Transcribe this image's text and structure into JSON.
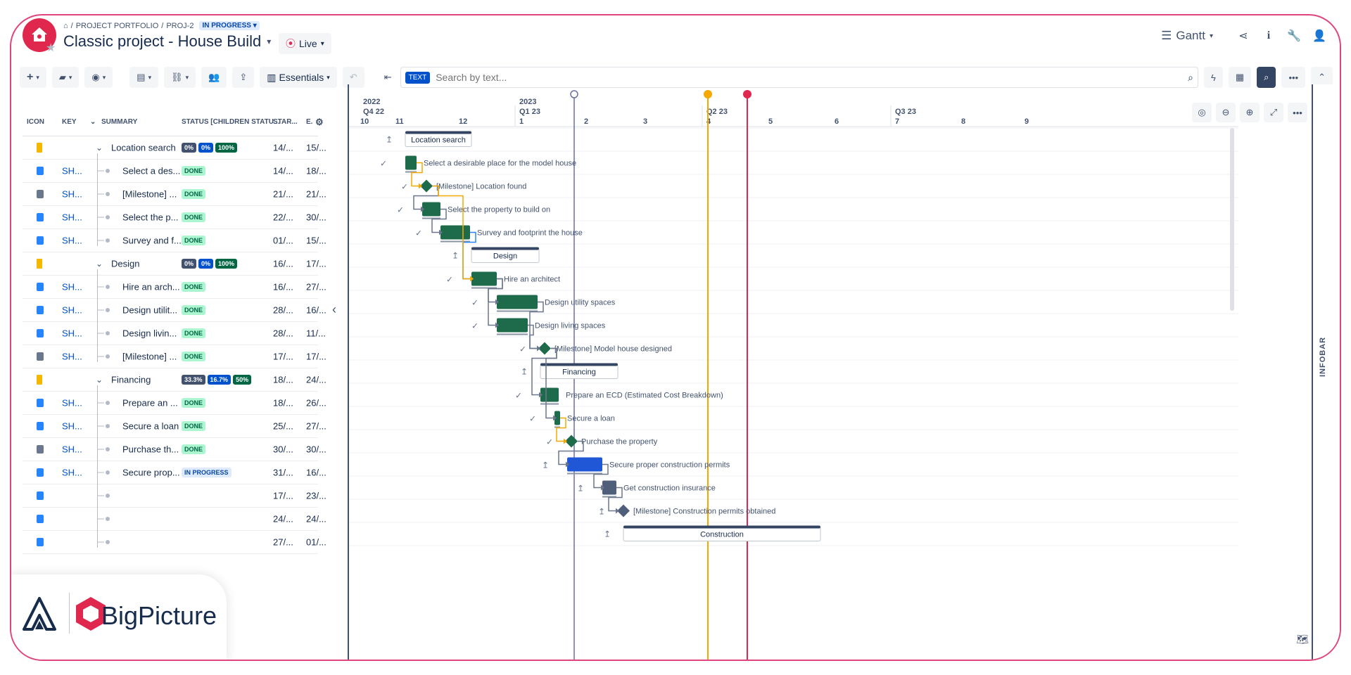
{
  "header": {
    "breadcrumb": [
      "PROJECT PORTFOLIO",
      "PROJ-2"
    ],
    "status_badge": "IN PROGRESS",
    "title": "Classic project - House Build",
    "live_label": "Live",
    "view_label": "Gantt"
  },
  "toolbar": {
    "essentials_label": "Essentials",
    "search_tag": "TEXT",
    "search_placeholder": "Search by text..."
  },
  "table": {
    "columns": [
      "ICON",
      "KEY",
      "SUMMARY",
      "STATUS [CHILDREN STATU...",
      "STAR...",
      "E."
    ],
    "rows": [
      {
        "type": "epic",
        "key": "",
        "summary": "Location search",
        "level": 0,
        "status": [
          "0%",
          "0%",
          "100%"
        ],
        "start": "14/...",
        "end": "15/..."
      },
      {
        "type": "task",
        "key": "SH...",
        "summary": "Select a des...",
        "level": 1,
        "status": [
          "DONE"
        ],
        "start": "14/...",
        "end": "18/..."
      },
      {
        "type": "ms",
        "key": "SH...",
        "summary": "[Milestone] ...",
        "level": 1,
        "status": [
          "DONE"
        ],
        "start": "21/...",
        "end": "21/..."
      },
      {
        "type": "task",
        "key": "SH...",
        "summary": "Select the p...",
        "level": 1,
        "status": [
          "DONE"
        ],
        "start": "22/...",
        "end": "30/..."
      },
      {
        "type": "task",
        "key": "SH...",
        "summary": "Survey and f...",
        "level": 1,
        "status": [
          "DONE"
        ],
        "start": "01/...",
        "end": "15/..."
      },
      {
        "type": "epic",
        "key": "",
        "summary": "Design",
        "level": 0,
        "status": [
          "0%",
          "0%",
          "100%"
        ],
        "start": "16/...",
        "end": "17/..."
      },
      {
        "type": "task",
        "key": "SH...",
        "summary": "Hire an arch...",
        "level": 1,
        "status": [
          "DONE"
        ],
        "start": "16/...",
        "end": "27/..."
      },
      {
        "type": "task",
        "key": "SH...",
        "summary": "Design utilit...",
        "level": 1,
        "status": [
          "DONE"
        ],
        "start": "28/...",
        "end": "16/..."
      },
      {
        "type": "task",
        "key": "SH...",
        "summary": "Design livin...",
        "level": 1,
        "status": [
          "DONE"
        ],
        "start": "28/...",
        "end": "11/..."
      },
      {
        "type": "ms",
        "key": "SH...",
        "summary": "[Milestone] ...",
        "level": 1,
        "status": [
          "DONE"
        ],
        "start": "17/...",
        "end": "17/..."
      },
      {
        "type": "epic",
        "key": "",
        "summary": "Financing",
        "level": 0,
        "status": [
          "33.3%",
          "16.7%",
          "50%"
        ],
        "start": "18/...",
        "end": "24/..."
      },
      {
        "type": "task",
        "key": "SH...",
        "summary": "Prepare an ...",
        "level": 1,
        "status": [
          "DONE"
        ],
        "start": "18/...",
        "end": "26/..."
      },
      {
        "type": "task",
        "key": "SH...",
        "summary": "Secure a loan",
        "level": 1,
        "status": [
          "DONE"
        ],
        "start": "25/...",
        "end": "27/..."
      },
      {
        "type": "ms",
        "key": "SH...",
        "summary": "Purchase th...",
        "level": 1,
        "status": [
          "DONE"
        ],
        "start": "30/...",
        "end": "30/..."
      },
      {
        "type": "task",
        "key": "SH...",
        "summary": "Secure prop...",
        "level": 1,
        "status": [
          "IN PROGRESS"
        ],
        "start": "31/...",
        "end": "16/..."
      },
      {
        "type": "task",
        "key": "",
        "summary": "",
        "level": 1,
        "status": [],
        "start": "17/...",
        "end": "23/..."
      },
      {
        "type": "task",
        "key": "",
        "summary": "",
        "level": 1,
        "status": [],
        "start": "24/...",
        "end": "24/..."
      },
      {
        "type": "task",
        "key": "",
        "summary": "",
        "level": 1,
        "status": [],
        "start": "27/...",
        "end": "01/..."
      }
    ]
  },
  "timeline": {
    "years": [
      "2022",
      "2023"
    ],
    "quarters": [
      "Q4 22",
      "Q1 23",
      "Q2 23",
      "Q3 23"
    ],
    "months": [
      "10",
      "11",
      "12",
      "1",
      "2",
      "3",
      "4",
      "5",
      "6",
      "7",
      "8",
      "9"
    ],
    "bars": [
      {
        "kind": "summary",
        "label": "Location search"
      },
      {
        "kind": "task",
        "label": "Select a desirable place for the model house"
      },
      {
        "kind": "milestone",
        "label": "[Milestone] Location found"
      },
      {
        "kind": "task",
        "label": "Select the property to build on"
      },
      {
        "kind": "task",
        "label": "Survey and footprint the house"
      },
      {
        "kind": "summary",
        "label": "Design"
      },
      {
        "kind": "task",
        "label": "Hire an architect"
      },
      {
        "kind": "task",
        "label": "Design utility spaces"
      },
      {
        "kind": "task",
        "label": "Design living spaces"
      },
      {
        "kind": "milestone",
        "label": "[Milestone] Model house designed"
      },
      {
        "kind": "summary",
        "label": "Financing"
      },
      {
        "kind": "task",
        "label": "Prepare an ECD (Estimated Cost Breakdown)"
      },
      {
        "kind": "task",
        "label": "Secure a loan"
      },
      {
        "kind": "milestone",
        "label": "Purchase the property"
      },
      {
        "kind": "task",
        "label": "Secure proper construction permits"
      },
      {
        "kind": "task",
        "label": "Get construction insurance"
      },
      {
        "kind": "milestone",
        "label": "[Milestone] Construction permits obtained"
      },
      {
        "kind": "summary",
        "label": "Construction"
      }
    ]
  },
  "infobar_label": "INFOBAR",
  "brand": {
    "name": "BigPicture"
  },
  "colors": {
    "accent": "#e0284f",
    "done": "#1e6b4b",
    "progress": "#1f57d6",
    "todo": "#505f79",
    "today": "#6b6fa8",
    "yellow": "#f5a800",
    "red": "#e0284f"
  }
}
